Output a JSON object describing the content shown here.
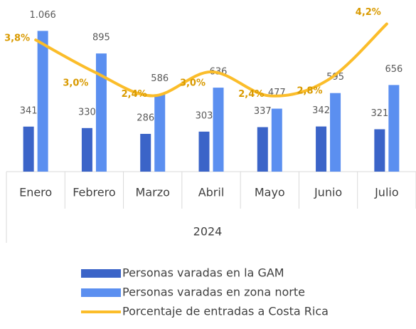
{
  "chart_data": {
    "type": "bar",
    "categories": [
      "Enero",
      "Febrero",
      "Marzo",
      "Abril",
      "Mayo",
      "Junio",
      "Julio"
    ],
    "x_label": "2024",
    "ylim": [
      0,
      1300
    ],
    "y2lim": [
      0.5,
      4.8
    ],
    "legend": "bottom",
    "series": [
      {
        "name": "Personas varadas en la GAM",
        "type": "bar",
        "color": "#3b64c8",
        "values": [
          341,
          330,
          286,
          303,
          337,
          342,
          321
        ]
      },
      {
        "name": "Personas varadas en zona norte",
        "type": "bar",
        "color": "#5b8ff0",
        "values": [
          1066,
          895,
          586,
          636,
          477,
          595,
          656
        ],
        "value_labels": [
          "1.066",
          "895",
          "586",
          "636",
          "477",
          "595",
          "656"
        ]
      },
      {
        "name": "Porcentaje de entradas a Costa Rica",
        "type": "line",
        "axis": "y2",
        "color": "#fbbd2a",
        "values": [
          3.8,
          3.0,
          2.4,
          3.0,
          2.4,
          2.8,
          4.2
        ],
        "value_labels": [
          "3,8%",
          "3,0%",
          "2,4%",
          "3,0%",
          "2,4%",
          "2,8%",
          "4,2%"
        ]
      }
    ]
  }
}
